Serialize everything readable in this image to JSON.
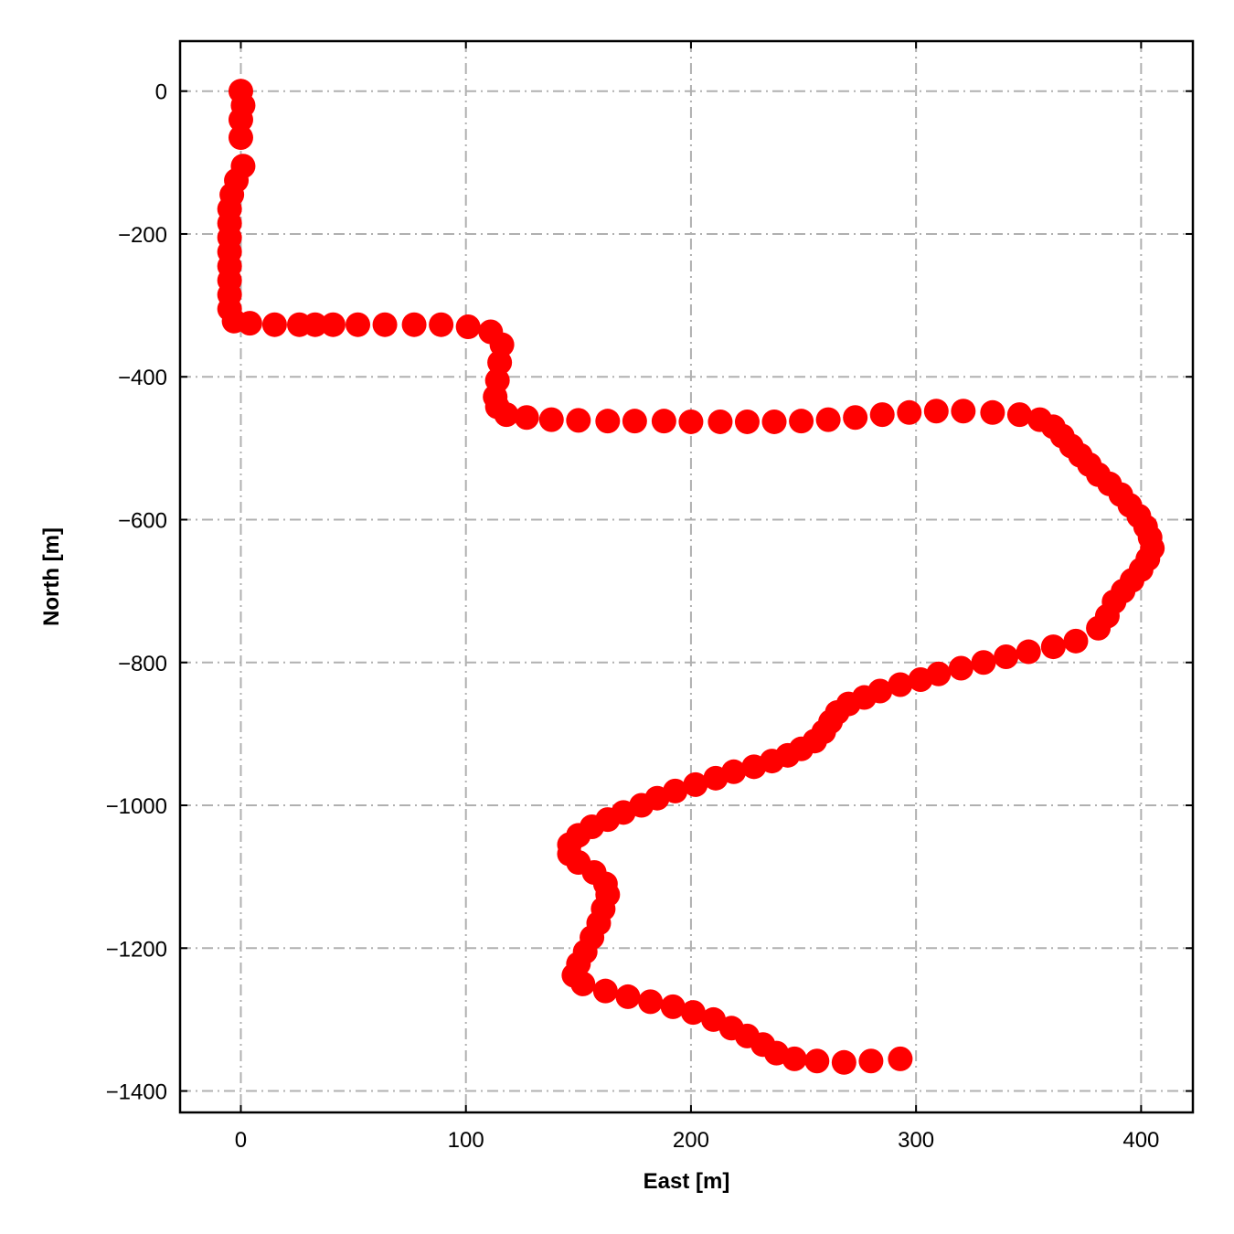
{
  "chart_data": {
    "type": "scatter",
    "xlabel": "East [m]",
    "ylabel": "North [m]",
    "xlim": [
      -27,
      423
    ],
    "ylim": [
      -1430,
      70
    ],
    "xticks": [
      0,
      100,
      200,
      300,
      400
    ],
    "yticks": [
      0,
      -200,
      -400,
      -600,
      -800,
      -1000,
      -1200,
      -1400
    ],
    "xtick_labels": [
      "0",
      "100",
      "200",
      "300",
      "400"
    ],
    "ytick_labels": [
      "0",
      "−200",
      "−400",
      "−600",
      "−800",
      "−1000",
      "−1200",
      "−1400"
    ],
    "grid": true,
    "grid_style": "dash-dot",
    "marker_color": "#ff0000",
    "grid_color": "#b0b0b0",
    "series": [
      {
        "points": [
          [
            0,
            0
          ],
          [
            1,
            -20
          ],
          [
            0,
            -40
          ],
          [
            0,
            -65
          ],
          [
            1,
            -105
          ],
          [
            -2,
            -125
          ],
          [
            -4,
            -145
          ],
          [
            -5,
            -165
          ],
          [
            -5,
            -185
          ],
          [
            -5,
            -205
          ],
          [
            -5,
            -225
          ],
          [
            -5,
            -245
          ],
          [
            -5,
            -265
          ],
          [
            -5,
            -285
          ],
          [
            -5,
            -305
          ],
          [
            -3,
            -322
          ],
          [
            4,
            -325
          ],
          [
            15,
            -327
          ],
          [
            26,
            -327
          ],
          [
            33,
            -327
          ],
          [
            41,
            -327
          ],
          [
            52,
            -327
          ],
          [
            64,
            -327
          ],
          [
            77,
            -327
          ],
          [
            89,
            -327
          ],
          [
            101,
            -330
          ],
          [
            111,
            -337
          ],
          [
            116,
            -355
          ],
          [
            115,
            -380
          ],
          [
            114,
            -405
          ],
          [
            113,
            -428
          ],
          [
            114,
            -442
          ],
          [
            118,
            -453
          ],
          [
            127,
            -457
          ],
          [
            138,
            -460
          ],
          [
            150,
            -461
          ],
          [
            163,
            -462
          ],
          [
            175,
            -462
          ],
          [
            188,
            -462
          ],
          [
            200,
            -463
          ],
          [
            213,
            -463
          ],
          [
            225,
            -463
          ],
          [
            237,
            -463
          ],
          [
            249,
            -462
          ],
          [
            261,
            -460
          ],
          [
            273,
            -457
          ],
          [
            285,
            -453
          ],
          [
            297,
            -450
          ],
          [
            309,
            -448
          ],
          [
            321,
            -448
          ],
          [
            334,
            -450
          ],
          [
            346,
            -453
          ],
          [
            355,
            -460
          ],
          [
            361,
            -470
          ],
          [
            365,
            -483
          ],
          [
            369,
            -497
          ],
          [
            373,
            -510
          ],
          [
            377,
            -523
          ],
          [
            381,
            -537
          ],
          [
            386,
            -550
          ],
          [
            391,
            -565
          ],
          [
            395,
            -580
          ],
          [
            399,
            -595
          ],
          [
            402,
            -610
          ],
          [
            404,
            -625
          ],
          [
            405,
            -640
          ],
          [
            403,
            -655
          ],
          [
            400,
            -670
          ],
          [
            396,
            -685
          ],
          [
            392,
            -700
          ],
          [
            388,
            -715
          ],
          [
            385,
            -735
          ],
          [
            381,
            -752
          ],
          [
            371,
            -770
          ],
          [
            361,
            -778
          ],
          [
            350,
            -785
          ],
          [
            340,
            -792
          ],
          [
            330,
            -800
          ],
          [
            320,
            -808
          ],
          [
            310,
            -816
          ],
          [
            302,
            -824
          ],
          [
            293,
            -831
          ],
          [
            284,
            -840
          ],
          [
            277,
            -849
          ],
          [
            270,
            -858
          ],
          [
            265,
            -870
          ],
          [
            262,
            -883
          ],
          [
            259,
            -897
          ],
          [
            255,
            -910
          ],
          [
            249,
            -921
          ],
          [
            243,
            -930
          ],
          [
            236,
            -938
          ],
          [
            228,
            -946
          ],
          [
            219,
            -953
          ],
          [
            211,
            -962
          ],
          [
            202,
            -971
          ],
          [
            193,
            -980
          ],
          [
            185,
            -990
          ],
          [
            178,
            -1000
          ],
          [
            170,
            -1010
          ],
          [
            163,
            -1020
          ],
          [
            156,
            -1030
          ],
          [
            150,
            -1042
          ],
          [
            146,
            -1055
          ],
          [
            146,
            -1068
          ],
          [
            150,
            -1080
          ],
          [
            157,
            -1094
          ],
          [
            162,
            -1110
          ],
          [
            163,
            -1125
          ],
          [
            161,
            -1145
          ],
          [
            159,
            -1165
          ],
          [
            156,
            -1185
          ],
          [
            153,
            -1205
          ],
          [
            150,
            -1222
          ],
          [
            148,
            -1238
          ],
          [
            152,
            -1250
          ],
          [
            162,
            -1260
          ],
          [
            172,
            -1268
          ],
          [
            182,
            -1275
          ],
          [
            192,
            -1282
          ],
          [
            201,
            -1290
          ],
          [
            210,
            -1300
          ],
          [
            218,
            -1312
          ],
          [
            225,
            -1323
          ],
          [
            232,
            -1335
          ],
          [
            238,
            -1347
          ],
          [
            246,
            -1355
          ],
          [
            256,
            -1358
          ],
          [
            268,
            -1360
          ],
          [
            280,
            -1358
          ],
          [
            293,
            -1355
          ]
        ]
      }
    ]
  }
}
